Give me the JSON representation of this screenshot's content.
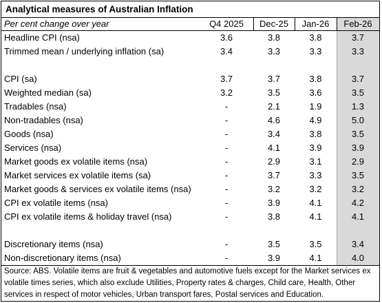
{
  "title": "Analytical measures of Australian Inflation",
  "header": {
    "label": "Per cent change over year",
    "columns": [
      "Q4 2025",
      "Dec-25",
      "Jan-26",
      "Feb-26"
    ]
  },
  "rows": [
    {
      "label": "Headline CPI (nsa)",
      "values": [
        "3.6",
        "3.8",
        "3.8",
        "3.7"
      ]
    },
    {
      "label": "Trimmed mean / underlying inflation (sa)",
      "values": [
        "3.4",
        "3.3",
        "3.3",
        "3.3"
      ]
    },
    {
      "label": "",
      "values": [
        "",
        "",
        "",
        ""
      ]
    },
    {
      "label": "CPI (sa)",
      "values": [
        "3.7",
        "3.7",
        "3.8",
        "3.7"
      ]
    },
    {
      "label": "Weighted median (sa)",
      "values": [
        "3.2",
        "3.5",
        "3.6",
        "3.5"
      ]
    },
    {
      "label": "Tradables (nsa)",
      "values": [
        "-",
        "2.1",
        "1.9",
        "1.3"
      ]
    },
    {
      "label": "Non-tradables (nsa)",
      "values": [
        "-",
        "4.6",
        "4.9",
        "5.0"
      ]
    },
    {
      "label": "Goods (nsa)",
      "values": [
        "-",
        "3.4",
        "3.8",
        "3.5"
      ]
    },
    {
      "label": "Services (nsa)",
      "values": [
        "-",
        "4.1",
        "3.9",
        "3.9"
      ]
    },
    {
      "label": "Market goods ex volatile items (nsa)",
      "values": [
        "-",
        "2.9",
        "3.1",
        "2.9"
      ]
    },
    {
      "label": "Market services ex volatile items (sa)",
      "values": [
        "-",
        "3.7",
        "3.3",
        "3.5"
      ]
    },
    {
      "label": "Market goods & services ex volatile items (nsa)",
      "values": [
        "-",
        "3.2",
        "3.2",
        "3.2"
      ]
    },
    {
      "label": "CPI ex volatile items (nsa)",
      "values": [
        "-",
        "3.9",
        "4.1",
        "4.2"
      ]
    },
    {
      "label": "CPI ex volatile items & holiday travel (nsa)",
      "values": [
        "-",
        "3.8",
        "4.1",
        "4.1"
      ]
    },
    {
      "label": "",
      "values": [
        "",
        "",
        "",
        ""
      ]
    },
    {
      "label": "Discretionary items (nsa)",
      "values": [
        "-",
        "3.5",
        "3.5",
        "3.4"
      ]
    },
    {
      "label": "Non-discretionary items (nsa)",
      "values": [
        "-",
        "3.9",
        "4.1",
        "4.0"
      ]
    }
  ],
  "footer": "Source: ABS. Volatile items are fruit & vegetables and automotive fuels except for the Market services ex volatile times series, which also exclude Utilities, Property rates & charges, Child care, Health, Other services in respect of motor vehicles, Urban transport fares, Postal services and Education."
}
